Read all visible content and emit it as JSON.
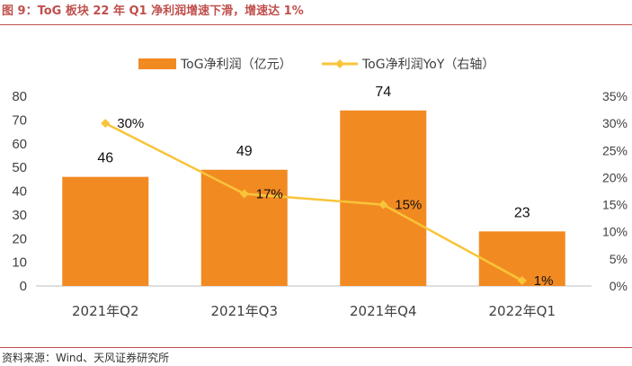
{
  "figure": {
    "title": "图 9：ToG 板块 22 年 Q1 净利润增速下滑，增速达 1%",
    "source": "资料来源：Wind、天风证券研究所"
  },
  "colors": {
    "bar": "#f28a22",
    "line": "#f8c43a",
    "accent": "#c0504d",
    "axis": "#bfbfbf",
    "text": "#404040"
  },
  "chart_data": {
    "type": "bar",
    "categories": [
      "2021年Q2",
      "2021年Q3",
      "2021年Q4",
      "2022年Q1"
    ],
    "series": [
      {
        "name": "ToG净利润（亿元）",
        "type": "bar",
        "axis": "left",
        "values": [
          46,
          49,
          74,
          23
        ],
        "labels": [
          "46",
          "49",
          "74",
          "23"
        ]
      },
      {
        "name": "ToG净利润YoY（右轴）",
        "type": "line",
        "axis": "right",
        "values": [
          30,
          17,
          15,
          1
        ],
        "labels": [
          "30%",
          "17%",
          "15%",
          "1%"
        ]
      }
    ],
    "y_left": {
      "min": 0,
      "max": 80,
      "ticks": [
        "0",
        "10",
        "20",
        "30",
        "40",
        "50",
        "60",
        "70",
        "80"
      ]
    },
    "y_right": {
      "min": 0,
      "max": 35,
      "ticks": [
        "0%",
        "5%",
        "10%",
        "15%",
        "20%",
        "25%",
        "30%",
        "35%"
      ]
    },
    "grid": false,
    "legend": "top-center"
  }
}
